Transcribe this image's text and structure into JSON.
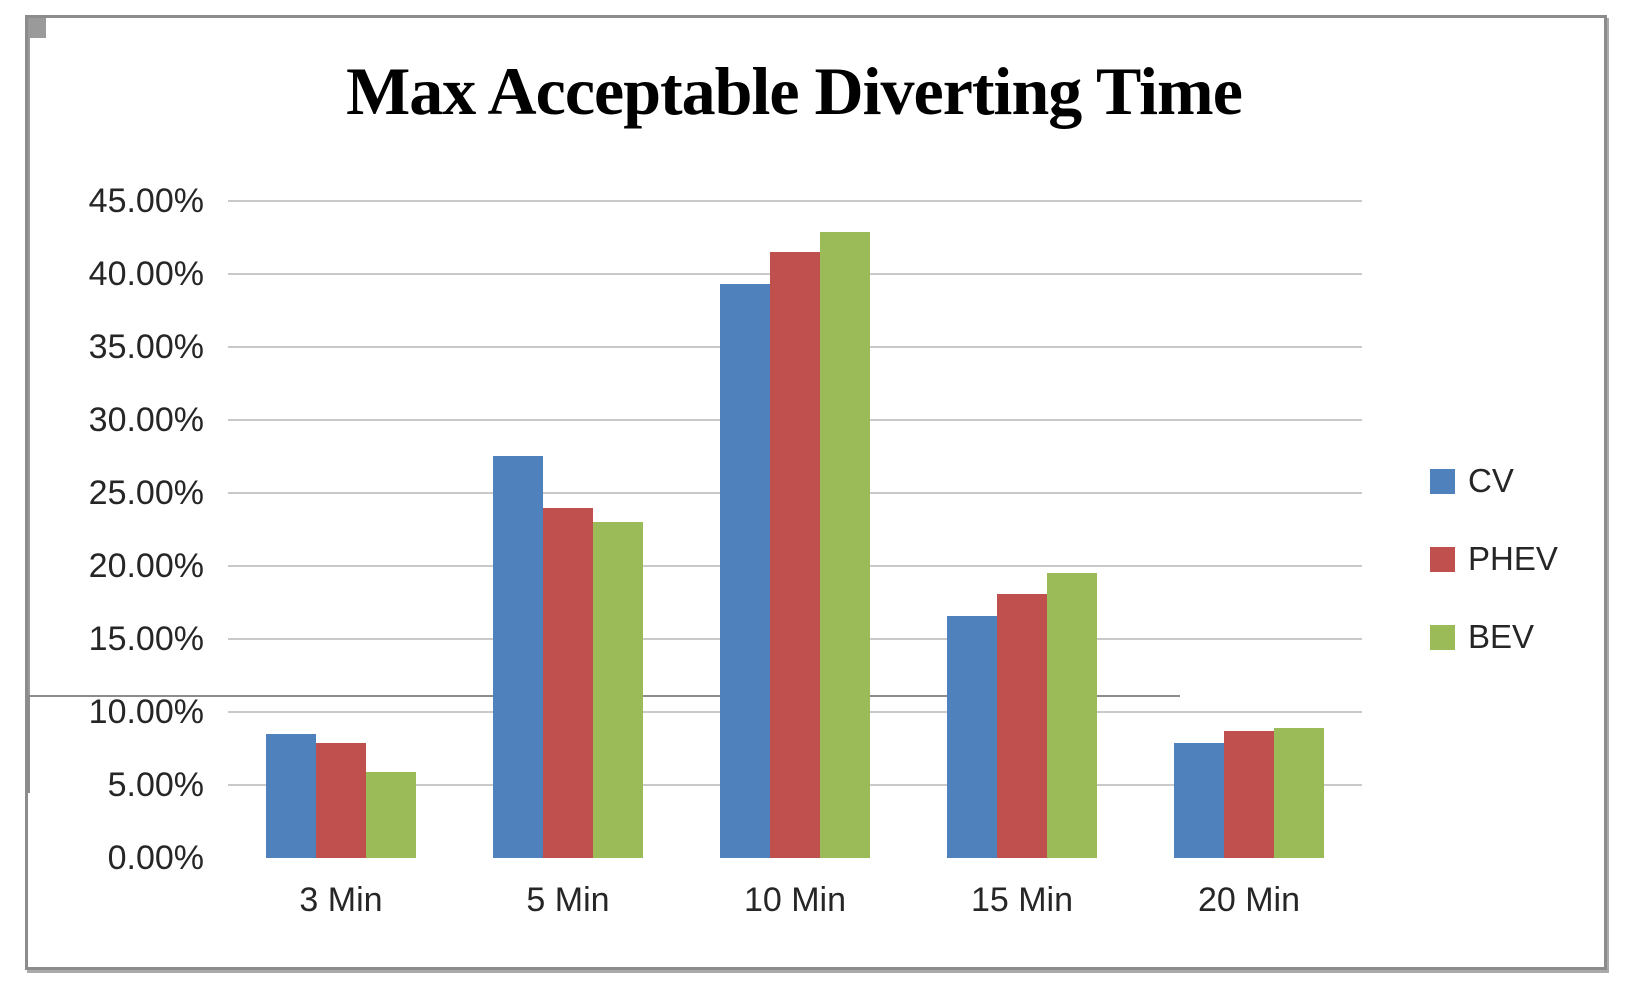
{
  "title": "Max Acceptable Diverting Time",
  "chart_data": {
    "type": "bar",
    "title": "Max Acceptable Diverting Time",
    "categories": [
      "3 Min",
      "5 Min",
      "10 Min",
      "15 Min",
      "20 Min"
    ],
    "series": [
      {
        "name": "CV",
        "color": "#4F81BD",
        "values": [
          8.5,
          27.5,
          39.3,
          16.6,
          7.9
        ]
      },
      {
        "name": "PHEV",
        "color": "#C0504D",
        "values": [
          7.9,
          24.0,
          41.5,
          18.1,
          8.7
        ]
      },
      {
        "name": "BEV",
        "color": "#9BBB59",
        "values": [
          5.9,
          23.0,
          42.9,
          19.5,
          8.9
        ]
      }
    ],
    "xlabel": "",
    "ylabel": "",
    "ylim": [
      0,
      45
    ],
    "ytick_step": 5,
    "ytick_labels_top_to_bottom": [
      "45.00%",
      "40.00%",
      "35.00%",
      "30.00%",
      "25.00%",
      "20.00%",
      "15.00%",
      "10.00%",
      "5.00%",
      "0.00%"
    ],
    "grid": true,
    "legend_position": "right",
    "legend_entries": [
      "CV",
      "PHEV",
      "BEV"
    ]
  },
  "colors": {
    "bar_blue": "#4F81BD",
    "bar_red": "#C0504D",
    "bar_green": "#9BBB59",
    "gridline": "#C9C9C9",
    "axis": "#9A9A9A",
    "baseline": "#8C8C8C",
    "text": "#262626",
    "frame_border": "#8C8C8C",
    "background": "#FFFFFF"
  }
}
